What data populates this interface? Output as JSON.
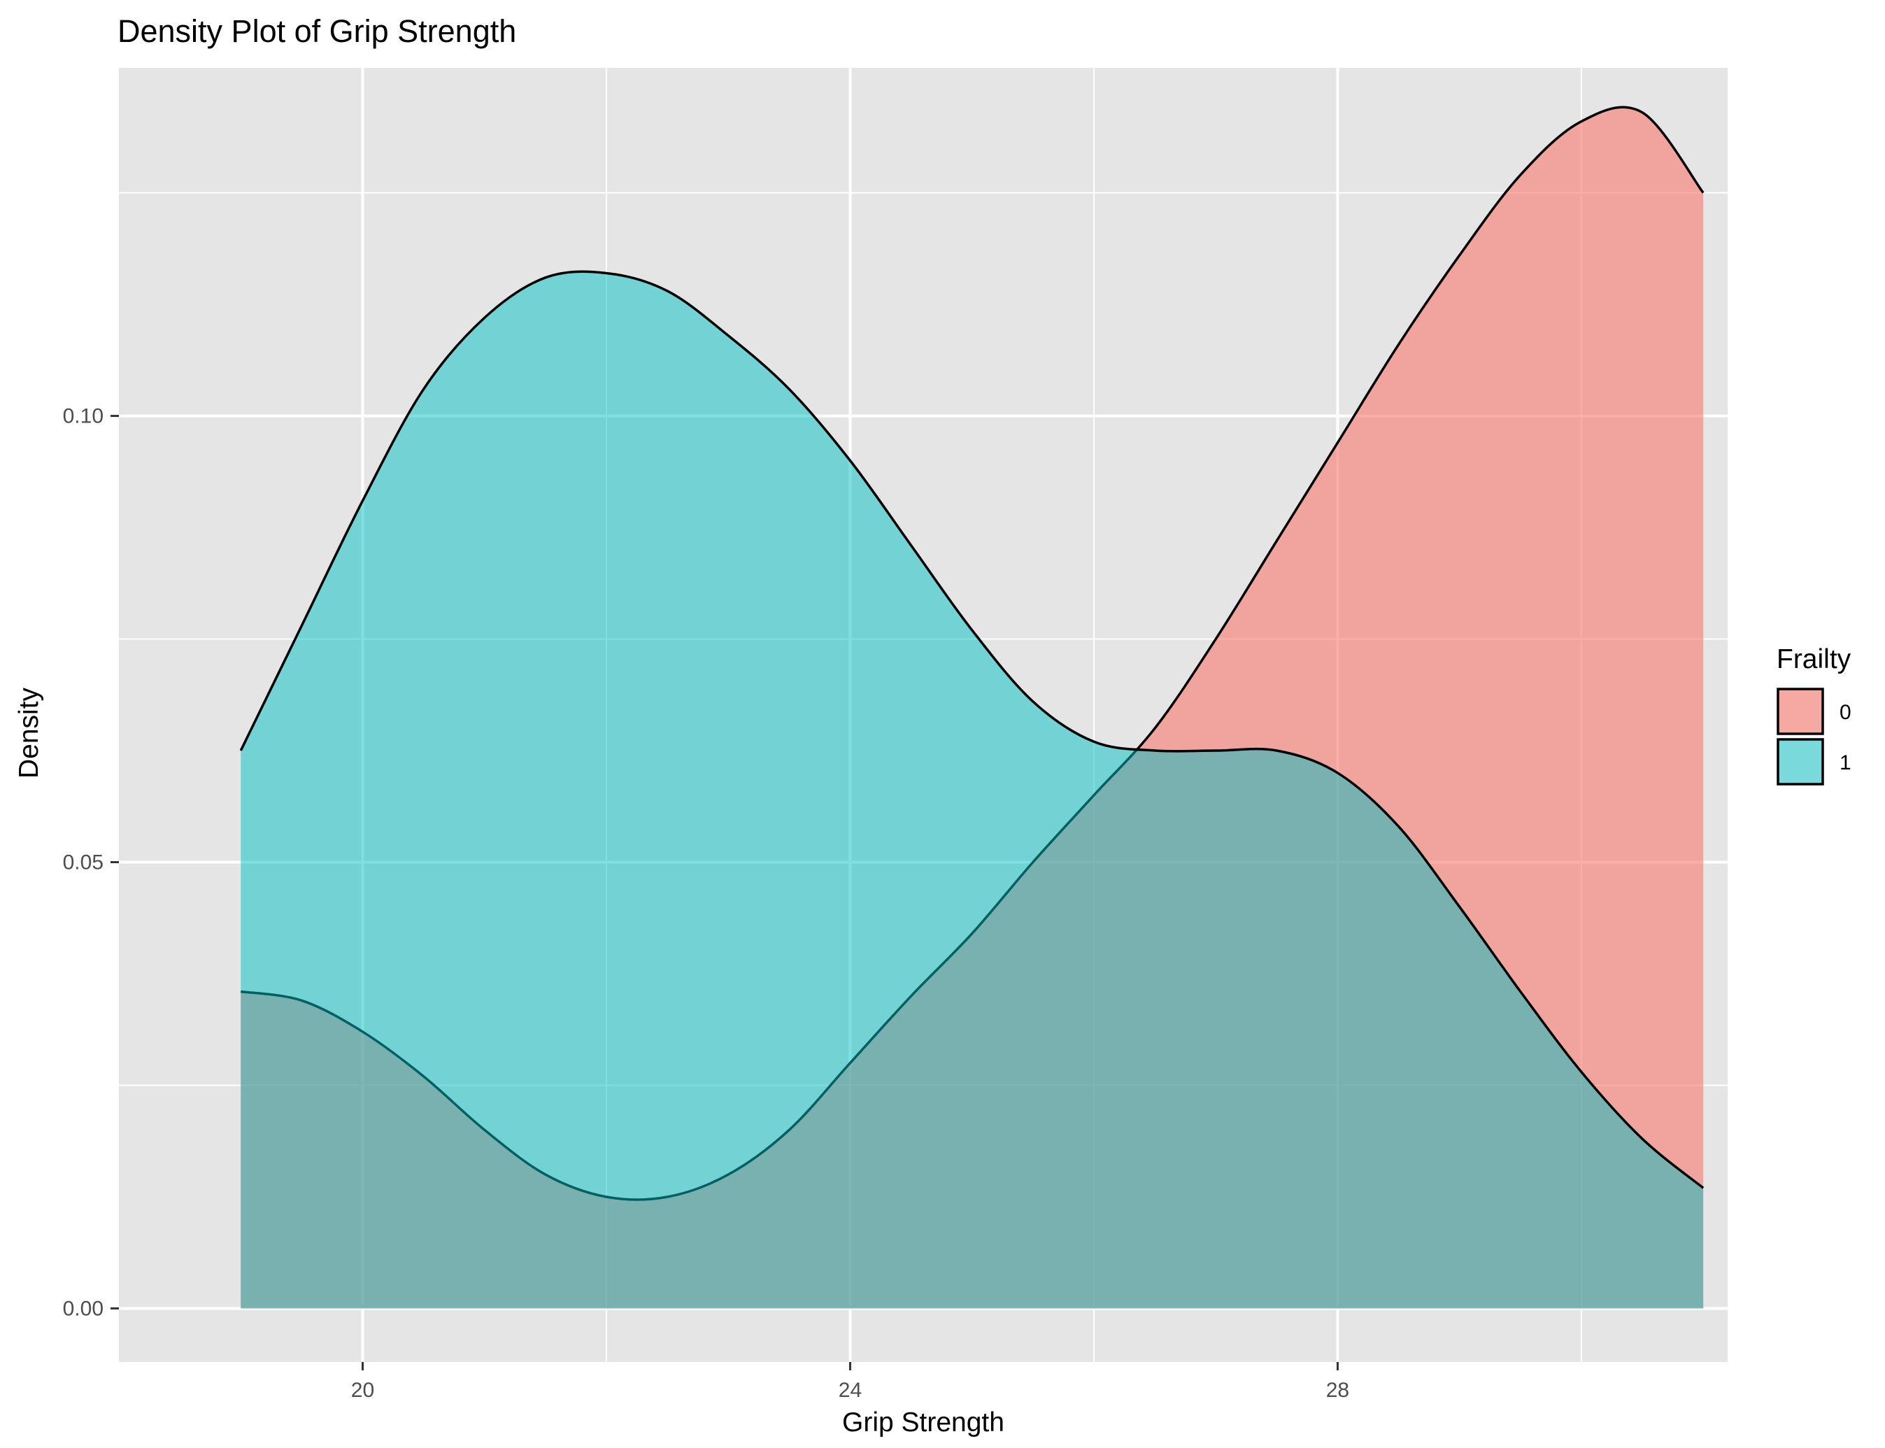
{
  "chart_data": {
    "type": "area",
    "title": "Density Plot of Grip Strength",
    "xlabel": "Grip Strength",
    "ylabel": "Density",
    "xlim": [
      18.0,
      31.2
    ],
    "ylim": [
      -0.006,
      0.139
    ],
    "x_ticks": [
      20,
      24,
      28
    ],
    "x_tick_labels": [
      "20",
      "24",
      "28"
    ],
    "x_minor_gridlines": [
      22,
      26,
      30
    ],
    "y_ticks": [
      0.0,
      0.05,
      0.1
    ],
    "y_tick_labels": [
      "0.00",
      "0.05",
      "0.10"
    ],
    "y_minor_gridlines": [
      0.025,
      0.075,
      0.125
    ],
    "grid": true,
    "legend": {
      "title": "Frailty",
      "position": "right"
    },
    "colors": {
      "panel_bg": "#e5e5e5",
      "grid": "#ffffff",
      "outline": "#000000"
    },
    "series": [
      {
        "name": "0",
        "color": "#f8766d",
        "fill_opacity": 0.6,
        "x": [
          19.0,
          19.5,
          20.0,
          20.5,
          21.0,
          21.5,
          22.0,
          22.5,
          23.0,
          23.5,
          24.0,
          24.5,
          25.0,
          25.5,
          26.0,
          26.5,
          27.0,
          27.5,
          28.0,
          28.5,
          29.0,
          29.5,
          30.0,
          30.5,
          31.0
        ],
        "y": [
          0.0355,
          0.0345,
          0.031,
          0.026,
          0.02,
          0.015,
          0.0125,
          0.0125,
          0.015,
          0.02,
          0.0275,
          0.035,
          0.042,
          0.05,
          0.0575,
          0.065,
          0.075,
          0.086,
          0.097,
          0.108,
          0.118,
          0.127,
          0.133,
          0.134,
          0.125
        ]
      },
      {
        "name": "1",
        "color": "#00bfc4",
        "fill_opacity": 0.5,
        "x": [
          19.0,
          19.5,
          20.0,
          20.5,
          21.0,
          21.5,
          22.0,
          22.5,
          23.0,
          23.5,
          24.0,
          24.5,
          25.0,
          25.5,
          26.0,
          26.5,
          27.0,
          27.5,
          28.0,
          28.5,
          29.0,
          29.5,
          30.0,
          30.5,
          31.0
        ],
        "y": [
          0.0625,
          0.0765,
          0.0905,
          0.103,
          0.111,
          0.1155,
          0.116,
          0.114,
          0.109,
          0.103,
          0.095,
          0.0855,
          0.076,
          0.068,
          0.0635,
          0.0625,
          0.0625,
          0.0625,
          0.06,
          0.054,
          0.045,
          0.0355,
          0.0265,
          0.019,
          0.0135
        ]
      }
    ]
  }
}
